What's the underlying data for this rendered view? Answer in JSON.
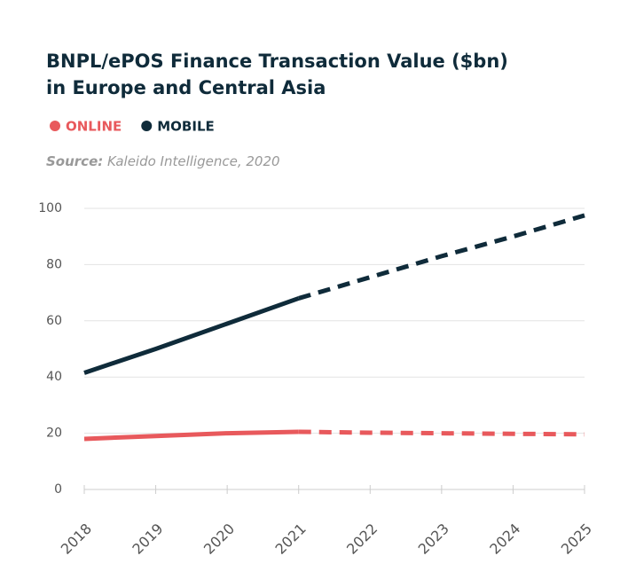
{
  "chart_data": {
    "type": "line",
    "title": [
      "BNPL/ePOS Finance Transaction Value ($bn)",
      "in Europe and Central Asia"
    ],
    "source_label": "Source:",
    "source": "Kaleido Intelligence, 2020",
    "categories": [
      "2018",
      "2019",
      "2020",
      "2021",
      "2022",
      "2023",
      "2024",
      "2025"
    ],
    "dashed_from": "2021",
    "series": [
      {
        "name": "ONLINE",
        "color": "#e8595c",
        "values": [
          18,
          19,
          20,
          20.5,
          20.2,
          20,
          19.8,
          19.6
        ]
      },
      {
        "name": "MOBILE",
        "color": "#0f2b3a",
        "values": [
          41.5,
          50,
          59,
          68,
          75.5,
          83,
          90,
          97.5
        ]
      }
    ],
    "ylim": [
      0,
      100
    ],
    "yticks": [
      0,
      20,
      40,
      60,
      80,
      100
    ],
    "grid": true
  }
}
